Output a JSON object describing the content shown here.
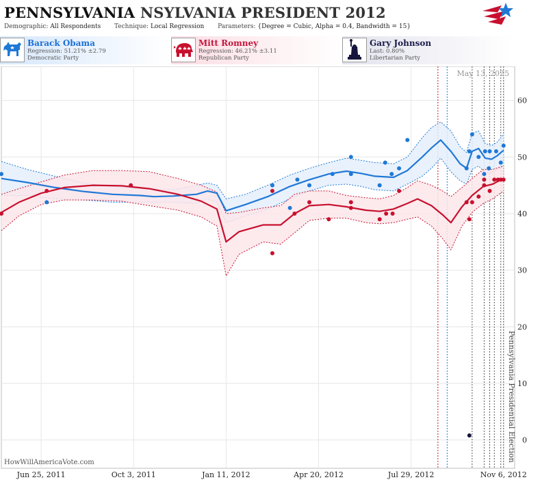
{
  "header": {
    "title_state": "PENNSYLVANIA",
    "title_rest": "NSYLVANIA PRESIDENT 2012",
    "demographic_label": "Demographic:",
    "demographic_value": "All Respondents",
    "technique_label": "Technique:",
    "technique_value": "Local Regression",
    "parameters_label": "Parameters:",
    "parameters_value": "{Degree = Cubic, Alpha = 0.4, Bandwidth = 15}"
  },
  "candidates": [
    {
      "name": "Barack Obama",
      "detail": "Regression: 51.21% ±2.79",
      "party": "Democratic Party",
      "icon": "donkey-icon"
    },
    {
      "name": "Mitt Romney",
      "detail": "Regression: 46.21% ±3.11",
      "party": "Republican Party",
      "icon": "elephant-icon"
    },
    {
      "name": "Gary Johnson",
      "detail": "Last: 0.80%",
      "party": "Libertarian Party",
      "icon": "statue-of-liberty-icon"
    }
  ],
  "colors": {
    "obama": "#1f78d6",
    "romney": "#c8102e",
    "johnson": "#14143c",
    "obama_band": "#e4effb",
    "romney_band": "#fbe6ea",
    "grid": "#e6e6e6"
  },
  "chart_data": {
    "type": "line",
    "date_label": "May 13, 2025",
    "election_label": "Pennsylvania Presidential Election",
    "watermark": "HowWillAmericaVote.com",
    "ylim": [
      -5,
      66
    ],
    "y_ticks": [
      0,
      10,
      20,
      30,
      40,
      50,
      60
    ],
    "xlim": [
      "2011-05-13",
      "2012-11-18"
    ],
    "x_ticks": [
      {
        "date": "2011-06-25",
        "label": "Jun 25, 2011"
      },
      {
        "date": "2011-10-03",
        "label": "Oct 3, 2011"
      },
      {
        "date": "2012-01-11",
        "label": "Jan 11, 2012"
      },
      {
        "date": "2012-04-20",
        "label": "Apr 20, 2012"
      },
      {
        "date": "2012-07-29",
        "label": "Jul 29, 2012"
      },
      {
        "date": "2012-11-06",
        "label": "Nov 6, 2012"
      }
    ],
    "event_lines": [
      {
        "date": "2012-08-27",
        "color": "romney"
      },
      {
        "date": "2012-09-06",
        "color": "obama"
      },
      {
        "date": "2012-10-03",
        "color": "gray"
      },
      {
        "date": "2012-10-16",
        "color": "gray"
      },
      {
        "date": "2012-10-22",
        "color": "gray"
      },
      {
        "date": "2012-10-27",
        "color": "gray"
      },
      {
        "date": "2012-11-03",
        "color": "gray"
      },
      {
        "date": "2012-11-06",
        "color": "gray"
      }
    ],
    "series": [
      {
        "name": "Barack Obama",
        "color_key": "obama",
        "fit": [
          [
            "2011-05-13",
            46.2
          ],
          [
            "2011-06-10",
            45.5
          ],
          [
            "2011-07-10",
            44.6
          ],
          [
            "2011-08-10",
            43.9
          ],
          [
            "2011-09-10",
            43.4
          ],
          [
            "2011-10-10",
            43.2
          ],
          [
            "2011-10-25",
            43.0
          ],
          [
            "2011-11-15",
            43.1
          ],
          [
            "2011-12-10",
            43.4
          ],
          [
            "2011-12-22",
            44.0
          ],
          [
            "2012-01-01",
            43.6
          ],
          [
            "2012-01-11",
            40.5
          ],
          [
            "2012-02-01",
            41.6
          ],
          [
            "2012-02-25",
            43.0
          ],
          [
            "2012-03-20",
            44.8
          ],
          [
            "2012-04-10",
            46.0
          ],
          [
            "2012-05-01",
            47.0
          ],
          [
            "2012-05-20",
            47.5
          ],
          [
            "2012-06-05",
            47.1
          ],
          [
            "2012-06-20",
            46.6
          ],
          [
            "2012-07-10",
            46.4
          ],
          [
            "2012-07-25",
            47.6
          ],
          [
            "2012-08-10",
            50.0
          ],
          [
            "2012-08-20",
            51.6
          ],
          [
            "2012-08-30",
            53.0
          ],
          [
            "2012-09-10",
            51.0
          ],
          [
            "2012-09-20",
            48.8
          ],
          [
            "2012-09-27",
            48.0
          ],
          [
            "2012-10-03",
            51.0
          ],
          [
            "2012-10-10",
            51.5
          ],
          [
            "2012-10-17",
            49.8
          ],
          [
            "2012-10-24",
            49.6
          ],
          [
            "2012-10-30",
            50.2
          ],
          [
            "2012-11-06",
            51.2
          ]
        ],
        "upper": [
          [
            "2011-05-13",
            49.2
          ],
          [
            "2011-06-10",
            47.8
          ],
          [
            "2011-07-10",
            46.6
          ],
          [
            "2011-08-10",
            45.4
          ],
          [
            "2011-09-10",
            44.8
          ],
          [
            "2011-10-10",
            44.4
          ],
          [
            "2011-11-15",
            44.2
          ],
          [
            "2011-12-10",
            45.0
          ],
          [
            "2011-12-22",
            45.4
          ],
          [
            "2012-01-01",
            45.0
          ],
          [
            "2012-01-11",
            42.6
          ],
          [
            "2012-02-01",
            43.4
          ],
          [
            "2012-02-25",
            45.0
          ],
          [
            "2012-03-20",
            46.8
          ],
          [
            "2012-04-10",
            48.0
          ],
          [
            "2012-05-01",
            49.0
          ],
          [
            "2012-05-20",
            49.8
          ],
          [
            "2012-06-05",
            49.4
          ],
          [
            "2012-06-20",
            49.0
          ],
          [
            "2012-07-10",
            48.8
          ],
          [
            "2012-07-25",
            50.0
          ],
          [
            "2012-08-10",
            53.4
          ],
          [
            "2012-08-20",
            55.2
          ],
          [
            "2012-08-30",
            56.2
          ],
          [
            "2012-09-10",
            54.6
          ],
          [
            "2012-09-20",
            51.8
          ],
          [
            "2012-09-27",
            50.8
          ],
          [
            "2012-10-03",
            54.2
          ],
          [
            "2012-10-10",
            54.6
          ],
          [
            "2012-10-17",
            52.4
          ],
          [
            "2012-10-24",
            52.0
          ],
          [
            "2012-10-30",
            52.6
          ],
          [
            "2012-11-06",
            54.0
          ]
        ],
        "lower": [
          [
            "2011-05-13",
            43.2
          ],
          [
            "2011-06-10",
            43.2
          ],
          [
            "2011-07-10",
            42.6
          ],
          [
            "2011-08-10",
            42.4
          ],
          [
            "2011-09-10",
            42.0
          ],
          [
            "2011-10-10",
            42.0
          ],
          [
            "2011-11-15",
            42.0
          ],
          [
            "2011-12-10",
            41.8
          ],
          [
            "2011-12-22",
            42.6
          ],
          [
            "2012-01-01",
            42.0
          ],
          [
            "2012-01-11",
            38.4
          ],
          [
            "2012-02-01",
            39.6
          ],
          [
            "2012-02-25",
            40.8
          ],
          [
            "2012-03-20",
            42.6
          ],
          [
            "2012-04-10",
            44.0
          ],
          [
            "2012-05-01",
            45.0
          ],
          [
            "2012-05-20",
            45.2
          ],
          [
            "2012-06-05",
            44.8
          ],
          [
            "2012-06-20",
            44.2
          ],
          [
            "2012-07-10",
            44.0
          ],
          [
            "2012-07-25",
            45.2
          ],
          [
            "2012-08-10",
            46.6
          ],
          [
            "2012-08-20",
            48.0
          ],
          [
            "2012-08-30",
            49.8
          ],
          [
            "2012-09-10",
            47.4
          ],
          [
            "2012-09-20",
            45.8
          ],
          [
            "2012-09-27",
            45.2
          ],
          [
            "2012-10-03",
            47.8
          ],
          [
            "2012-10-10",
            48.4
          ],
          [
            "2012-10-17",
            47.2
          ],
          [
            "2012-10-24",
            47.2
          ],
          [
            "2012-10-30",
            47.8
          ],
          [
            "2012-11-06",
            48.4
          ]
        ],
        "points": [
          [
            "2011-05-13",
            47
          ],
          [
            "2011-07-01",
            42
          ],
          [
            "2012-03-01",
            45
          ],
          [
            "2012-03-20",
            41
          ],
          [
            "2012-03-28",
            46
          ],
          [
            "2012-04-10",
            45
          ],
          [
            "2012-05-05",
            47
          ],
          [
            "2012-05-25",
            50
          ],
          [
            "2012-05-25",
            47
          ],
          [
            "2012-06-25",
            45
          ],
          [
            "2012-07-01",
            49
          ],
          [
            "2012-07-08",
            47
          ],
          [
            "2012-07-16",
            48
          ],
          [
            "2012-07-25",
            53
          ],
          [
            "2012-09-27",
            48
          ],
          [
            "2012-09-30",
            51
          ],
          [
            "2012-10-03",
            54
          ],
          [
            "2012-10-10",
            50
          ],
          [
            "2012-10-16",
            47
          ],
          [
            "2012-10-17",
            51
          ],
          [
            "2012-10-21",
            48
          ],
          [
            "2012-10-22",
            51
          ],
          [
            "2012-10-29",
            51
          ],
          [
            "2012-11-03",
            49
          ],
          [
            "2012-11-06",
            52
          ]
        ]
      },
      {
        "name": "Mitt Romney",
        "color_key": "romney",
        "fit": [
          [
            "2011-05-13",
            40.2
          ],
          [
            "2011-06-01",
            42.0
          ],
          [
            "2011-06-25",
            43.6
          ],
          [
            "2011-07-20",
            44.6
          ],
          [
            "2011-08-20",
            45.0
          ],
          [
            "2011-09-20",
            44.9
          ],
          [
            "2011-10-20",
            44.4
          ],
          [
            "2011-11-20",
            43.4
          ],
          [
            "2011-12-15",
            42.2
          ],
          [
            "2012-01-01",
            40.8
          ],
          [
            "2012-01-11",
            35.0
          ],
          [
            "2012-01-25",
            36.8
          ],
          [
            "2012-02-20",
            38.0
          ],
          [
            "2012-03-10",
            38.0
          ],
          [
            "2012-03-25",
            40.0
          ],
          [
            "2012-04-10",
            41.4
          ],
          [
            "2012-05-01",
            41.6
          ],
          [
            "2012-05-20",
            41.2
          ],
          [
            "2012-06-10",
            40.6
          ],
          [
            "2012-06-25",
            40.4
          ],
          [
            "2012-07-10",
            40.8
          ],
          [
            "2012-07-25",
            41.8
          ],
          [
            "2012-08-05",
            42.6
          ],
          [
            "2012-08-20",
            41.4
          ],
          [
            "2012-09-01",
            39.8
          ],
          [
            "2012-09-10",
            38.4
          ],
          [
            "2012-09-22",
            41.2
          ],
          [
            "2012-10-03",
            43.2
          ],
          [
            "2012-10-15",
            44.8
          ],
          [
            "2012-10-25",
            45.2
          ],
          [
            "2012-11-06",
            46.2
          ]
        ],
        "upper": [
          [
            "2011-05-13",
            43.4
          ],
          [
            "2011-06-01",
            44.4
          ],
          [
            "2011-06-25",
            45.6
          ],
          [
            "2011-07-20",
            46.8
          ],
          [
            "2011-08-20",
            47.6
          ],
          [
            "2011-09-20",
            47.6
          ],
          [
            "2011-10-20",
            47.4
          ],
          [
            "2011-11-20",
            46.2
          ],
          [
            "2011-12-15",
            45.0
          ],
          [
            "2012-01-01",
            43.8
          ],
          [
            "2012-01-11",
            40.0
          ],
          [
            "2012-01-25",
            40.2
          ],
          [
            "2012-02-20",
            41.0
          ],
          [
            "2012-03-10",
            41.4
          ],
          [
            "2012-03-25",
            43.4
          ],
          [
            "2012-04-10",
            44.0
          ],
          [
            "2012-05-01",
            44.0
          ],
          [
            "2012-05-20",
            43.2
          ],
          [
            "2012-06-10",
            42.8
          ],
          [
            "2012-06-25",
            42.6
          ],
          [
            "2012-07-10",
            43.2
          ],
          [
            "2012-07-25",
            44.6
          ],
          [
            "2012-08-05",
            45.8
          ],
          [
            "2012-08-20",
            45.0
          ],
          [
            "2012-09-01",
            44.0
          ],
          [
            "2012-09-10",
            43.0
          ],
          [
            "2012-09-22",
            44.6
          ],
          [
            "2012-10-03",
            46.2
          ],
          [
            "2012-10-15",
            47.8
          ],
          [
            "2012-10-25",
            47.8
          ],
          [
            "2012-11-06",
            48.4
          ]
        ],
        "lower": [
          [
            "2011-05-13",
            37.0
          ],
          [
            "2011-06-01",
            39.6
          ],
          [
            "2011-06-25",
            41.6
          ],
          [
            "2011-07-20",
            42.4
          ],
          [
            "2011-08-20",
            42.4
          ],
          [
            "2011-09-20",
            42.2
          ],
          [
            "2011-10-20",
            41.4
          ],
          [
            "2011-11-20",
            40.6
          ],
          [
            "2011-12-15",
            39.4
          ],
          [
            "2012-01-01",
            37.8
          ],
          [
            "2012-01-11",
            29.0
          ],
          [
            "2012-01-25",
            32.8
          ],
          [
            "2012-02-20",
            35.0
          ],
          [
            "2012-03-10",
            34.6
          ],
          [
            "2012-03-25",
            36.6
          ],
          [
            "2012-04-10",
            38.8
          ],
          [
            "2012-05-01",
            39.2
          ],
          [
            "2012-05-20",
            39.2
          ],
          [
            "2012-06-10",
            38.4
          ],
          [
            "2012-06-25",
            38.2
          ],
          [
            "2012-07-10",
            38.4
          ],
          [
            "2012-07-25",
            39.0
          ],
          [
            "2012-08-05",
            39.4
          ],
          [
            "2012-08-20",
            37.8
          ],
          [
            "2012-09-01",
            35.6
          ],
          [
            "2012-09-10",
            33.6
          ],
          [
            "2012-09-22",
            37.8
          ],
          [
            "2012-10-03",
            40.2
          ],
          [
            "2012-10-15",
            41.8
          ],
          [
            "2012-10-25",
            42.6
          ],
          [
            "2012-11-06",
            44.0
          ]
        ],
        "points": [
          [
            "2011-05-13",
            40
          ],
          [
            "2011-07-01",
            44
          ],
          [
            "2011-09-30",
            45
          ],
          [
            "2012-03-01",
            33
          ],
          [
            "2012-03-01",
            44
          ],
          [
            "2012-03-25",
            40
          ],
          [
            "2012-04-10",
            42
          ],
          [
            "2012-05-25",
            42
          ],
          [
            "2012-05-25",
            41
          ],
          [
            "2012-05-01",
            39
          ],
          [
            "2012-06-25",
            39
          ],
          [
            "2012-07-02",
            40
          ],
          [
            "2012-07-09",
            40
          ],
          [
            "2012-07-16",
            44
          ],
          [
            "2012-09-27",
            42
          ],
          [
            "2012-09-30",
            39
          ],
          [
            "2012-10-03",
            42
          ],
          [
            "2012-10-10",
            43
          ],
          [
            "2012-10-16",
            46
          ],
          [
            "2012-10-16",
            45
          ],
          [
            "2012-10-22",
            44
          ],
          [
            "2012-10-27",
            46
          ],
          [
            "2012-10-31",
            46
          ],
          [
            "2012-11-03",
            46
          ],
          [
            "2012-11-06",
            46
          ]
        ]
      },
      {
        "name": "Gary Johnson",
        "color_key": "johnson",
        "points": [
          [
            "2012-09-30",
            0.8
          ]
        ]
      }
    ]
  }
}
